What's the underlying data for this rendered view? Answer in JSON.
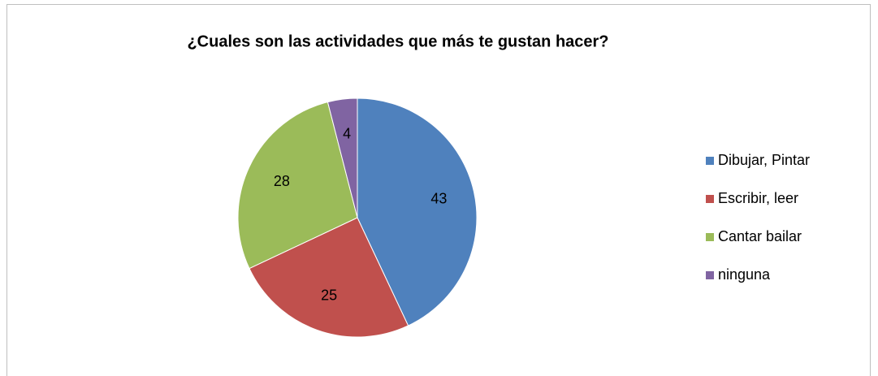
{
  "chart_data": {
    "type": "pie",
    "title": "¿Cuales son las actividades que más te gustan hacer?",
    "categories": [
      "Dibujar, Pintar",
      "Escribir, leer",
      "Cantar bailar",
      "ninguna"
    ],
    "values": [
      43,
      25,
      28,
      4
    ],
    "colors": [
      "#4f81bd",
      "#c0504d",
      "#9bbb59",
      "#8064a2"
    ],
    "legend": "right"
  }
}
